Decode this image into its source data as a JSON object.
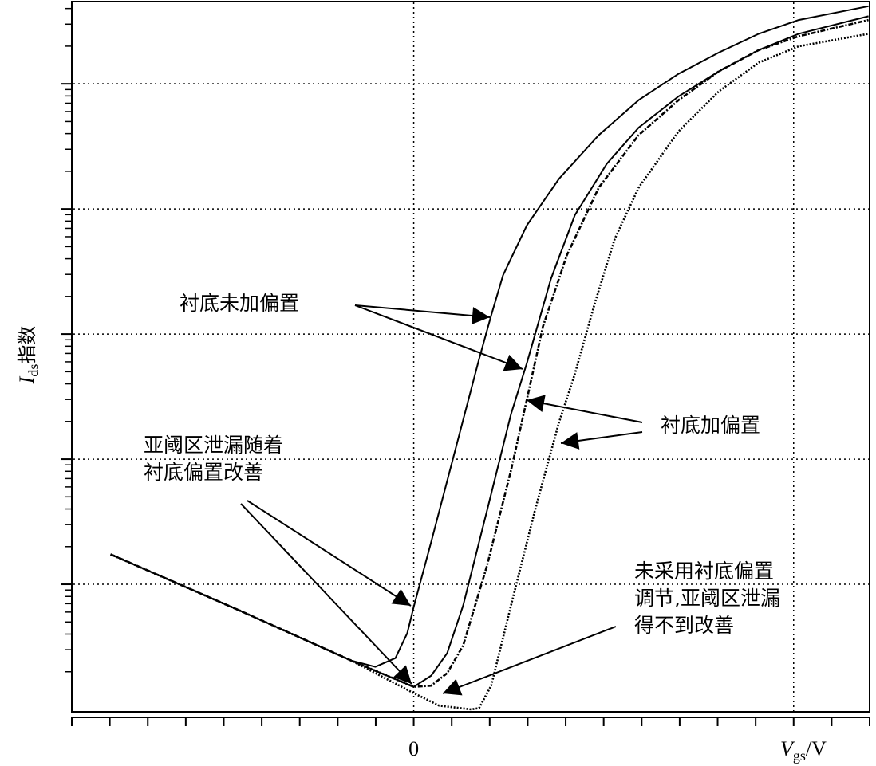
{
  "chart_data": {
    "type": "line",
    "ylabel": {
      "main": "I",
      "sub": "ds",
      "rest": "指数"
    },
    "xlabel": {
      "main": "V",
      "sub": "gs",
      "rest": "/V"
    },
    "xlim": [
      -9,
      12
    ],
    "xticks": [
      -9,
      -8,
      -7,
      -6,
      -5,
      -4,
      -3,
      -2,
      -1,
      {
        "value": 0,
        "label": "0"
      },
      1,
      2,
      3,
      4,
      5,
      6,
      7,
      8,
      9,
      10,
      11,
      12
    ],
    "xgrid": [
      0,
      10
    ],
    "ylim": [
      0,
      5.67
    ],
    "yticks": [
      1,
      2,
      3,
      4,
      5
    ],
    "log_scale_y": true,
    "grid": true,
    "series": [
      {
        "color": "#000000",
        "style": "solid",
        "x": [
          -7.98,
          -4.58,
          -1.64,
          -1.01,
          -0.48,
          -0.17,
          0,
          0.46,
          1.09,
          1.72,
          2.04,
          2.35,
          2.98,
          3.82,
          4.87,
          5.92,
          6.97,
          8.03,
          9.08,
          10.13,
          11.97
        ],
        "values": [
          1.24,
          0.79,
          0.39,
          0.34,
          0.41,
          0.61,
          0.82,
          1.34,
          2.07,
          2.8,
          3.15,
          3.47,
          3.87,
          4.24,
          4.59,
          4.87,
          5.08,
          5.25,
          5.4,
          5.51,
          5.62
        ]
      },
      {
        "color": "#000000",
        "style": "solid",
        "x": [
          -7.98,
          -4.58,
          -1.64,
          0,
          0.46,
          0.88,
          1.3,
          1.93,
          2.56,
          2.98,
          3.61,
          4.24,
          5.08,
          5.92,
          6.97,
          8.03,
          9.08,
          10.13,
          11.97
        ],
        "values": [
          1.24,
          0.79,
          0.39,
          0.18,
          0.27,
          0.45,
          0.83,
          1.59,
          2.36,
          2.77,
          3.44,
          3.95,
          4.36,
          4.65,
          4.9,
          5.1,
          5.27,
          5.4,
          5.54
        ]
      },
      {
        "color": "#000000",
        "style": "dashdot",
        "x": [
          -7.98,
          -4.58,
          -1.64,
          0,
          0.46,
          0.88,
          1.3,
          1.93,
          2.56,
          2.98,
          3.4,
          4.03,
          4.87,
          5.92,
          6.97,
          8.03,
          9.08,
          10.13,
          11.97
        ],
        "values": [
          1.24,
          0.79,
          0.39,
          0.18,
          0.19,
          0.29,
          0.51,
          1.15,
          1.91,
          2.48,
          3.06,
          3.63,
          4.17,
          4.59,
          4.87,
          5.1,
          5.27,
          5.38,
          5.51
        ]
      },
      {
        "color": "#000000",
        "style": "dotted",
        "x": [
          -7.98,
          -4.58,
          -1.64,
          0,
          0.67,
          1.51,
          1.72,
          2.04,
          2.56,
          3.19,
          3.82,
          4.24,
          4.77,
          5.29,
          5.92,
          6.97,
          8.03,
          9.08,
          10.13,
          11.97
        ],
        "values": [
          1.24,
          0.79,
          0.39,
          0.13,
          0.03,
          0.0,
          0.01,
          0.19,
          0.83,
          1.59,
          2.29,
          2.68,
          3.25,
          3.76,
          4.17,
          4.62,
          4.94,
          5.17,
          5.3,
          5.4
        ]
      }
    ],
    "annotations": [
      {
        "lines": [
          "衬底未加偏置"
        ]
      },
      {
        "lines": [
          "衬底加偏置"
        ]
      },
      {
        "lines": [
          "亚阈区泄漏随着",
          "衬底偏置改善"
        ]
      },
      {
        "lines": [
          "未采用衬底偏置",
          "调节,亚阈区泄漏",
          "得不到改善"
        ]
      }
    ]
  }
}
